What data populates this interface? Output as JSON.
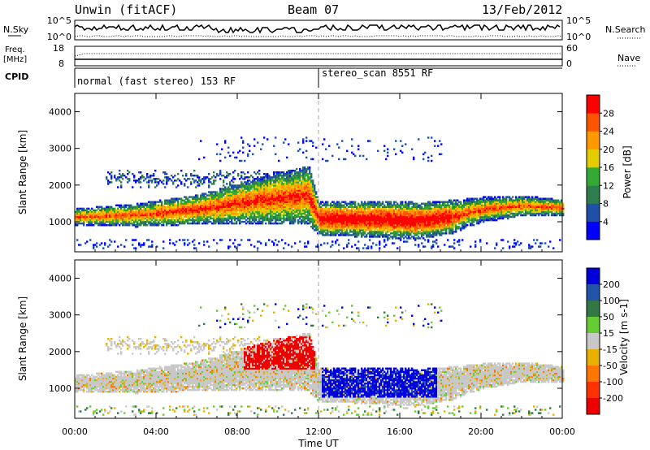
{
  "header": {
    "station": "Unwin (fitACF)",
    "beam": "Beam 07",
    "date": "13/Feb/2012"
  },
  "status_panel": {
    "nsky_label": "N.Sky",
    "nsearch_label": "N.Search",
    "sky_ticks": [
      "10^5",
      "10^0"
    ],
    "freq_label": "Freq.",
    "freq_unit": "[MHz]",
    "freq_ticks": [
      "18",
      "8"
    ],
    "nave_label": "Nave",
    "nave_ticks": [
      "60",
      "0"
    ],
    "cpid_label": "CPID",
    "cpid_segments": [
      {
        "label": "normal (fast stereo) 153 RF",
        "start_hour": 0
      },
      {
        "label": "stereo_scan 8551 RF",
        "start_hour": 12
      }
    ]
  },
  "colors": {
    "power": [
      "#0000ff",
      "#1f4fa8",
      "#2e7d4f",
      "#33aa33",
      "#e5cc00",
      "#ff9900",
      "#ff5500",
      "#ff0000"
    ],
    "velocity": [
      "#0000dd",
      "#2255aa",
      "#337744",
      "#66cc33",
      "#c8c8c8",
      "#e8b000",
      "#ff7700",
      "#ff3300",
      "#ee0000"
    ]
  },
  "chart_data": [
    {
      "type": "heatmap",
      "name": "power",
      "xlabel": "",
      "ylabel": "Slant Range [km]",
      "xlim": [
        0,
        24
      ],
      "ylim": [
        180,
        4500
      ],
      "y_ticks": [
        "1000",
        "2000",
        "3000",
        "4000"
      ],
      "colorbar": {
        "label": "Power [dB]",
        "ticks": [
          "4",
          "8",
          "12",
          "16",
          "20",
          "24",
          "28"
        ],
        "range": [
          0,
          32
        ]
      }
    },
    {
      "type": "heatmap",
      "name": "velocity",
      "xlabel": "Time UT",
      "ylabel": "Slant Range [km]",
      "xlim": [
        0,
        24
      ],
      "ylim": [
        180,
        4500
      ],
      "x_ticks": [
        "00:00",
        "04:00",
        "08:00",
        "12:00",
        "16:00",
        "20:00",
        "00:00"
      ],
      "y_ticks": [
        "1000",
        "2000",
        "3000",
        "4000"
      ],
      "colorbar": {
        "label": "Velocity [m s-1]",
        "ticks": [
          "200",
          "100",
          "50",
          "15",
          "-15",
          "-50",
          "-100",
          "-200"
        ],
        "range": [
          -250,
          250
        ]
      }
    }
  ]
}
